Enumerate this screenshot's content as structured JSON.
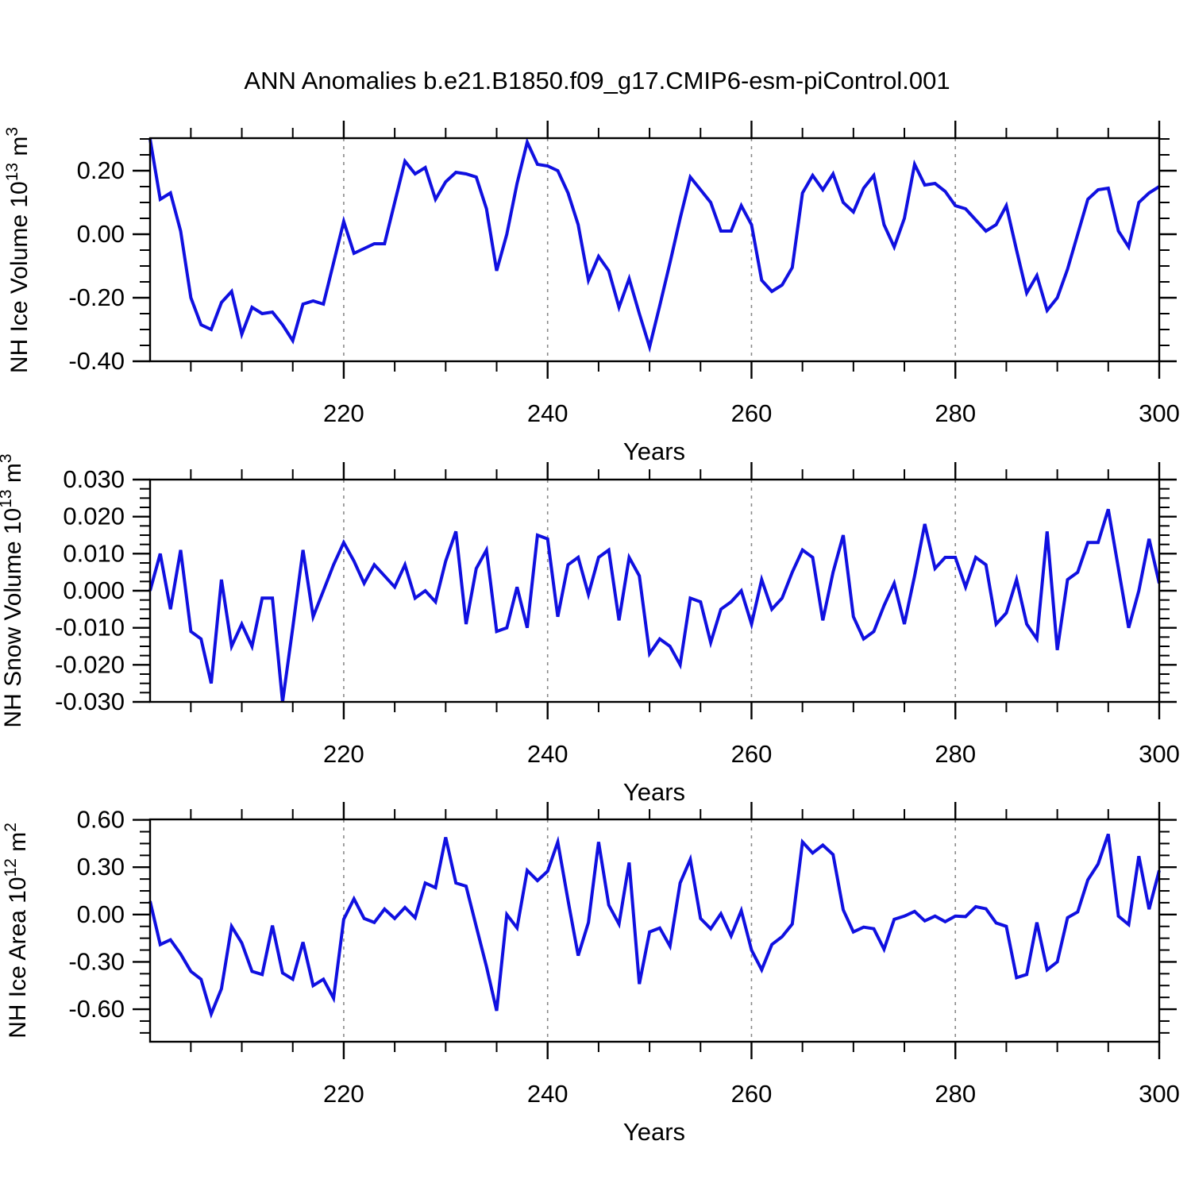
{
  "title": "ANN Anomalies b.e21.B1850.f09_g17.CMIP6-esm-piControl.001",
  "xlabel": "Years",
  "colors": {
    "line": "#1010E0",
    "axis": "#000000",
    "gridline": "#8a8a8a",
    "background": "#ffffff"
  },
  "x_axis": {
    "start": 201,
    "end": 300,
    "labeled_ticks": [
      220,
      240,
      260,
      280,
      300
    ],
    "tick_labels": [
      "220",
      "240",
      "260",
      "280",
      "300"
    ],
    "minor_step": 5,
    "gridline_years": [
      220,
      240,
      260,
      280
    ]
  },
  "chart_data": [
    {
      "type": "line",
      "ylabel": "NH Ice Volume 10^13 m^3",
      "ylabel_main": "NH Ice Volume 10",
      "ylabel_exp": "13",
      "ylabel_unit": " m",
      "ylabel_unit_exp": "3",
      "xlabel": "Years",
      "ylim": [
        -0.4,
        0.3025
      ],
      "yticks": [
        0.2,
        0.0,
        -0.2,
        -0.4
      ],
      "ytick_labels": [
        "0.20",
        "0.00",
        "-0.20",
        "-0.40"
      ],
      "y_minor_step": 0.05,
      "x": [
        201,
        202,
        203,
        204,
        205,
        206,
        207,
        208,
        209,
        210,
        211,
        212,
        213,
        214,
        215,
        216,
        217,
        218,
        219,
        220,
        221,
        222,
        223,
        224,
        225,
        226,
        227,
        228,
        229,
        230,
        231,
        232,
        233,
        234,
        235,
        236,
        237,
        238,
        239,
        240,
        241,
        242,
        243,
        244,
        245,
        246,
        247,
        248,
        249,
        250,
        251,
        252,
        253,
        254,
        255,
        256,
        257,
        258,
        259,
        260,
        261,
        262,
        263,
        264,
        265,
        266,
        267,
        268,
        269,
        270,
        271,
        272,
        273,
        274,
        275,
        276,
        277,
        278,
        279,
        280,
        281,
        282,
        283,
        284,
        285,
        286,
        287,
        288,
        289,
        290,
        291,
        292,
        293,
        294,
        295,
        296,
        297,
        298,
        299,
        300
      ],
      "values": [
        0.3,
        0.11,
        0.13,
        0.01,
        -0.2,
        -0.285,
        -0.3,
        -0.215,
        -0.18,
        -0.315,
        -0.23,
        -0.25,
        -0.245,
        -0.285,
        -0.335,
        -0.22,
        -0.21,
        -0.22,
        -0.09,
        0.04,
        -0.06,
        -0.045,
        -0.03,
        -0.03,
        0.1,
        0.23,
        0.19,
        0.21,
        0.11,
        0.165,
        0.195,
        0.19,
        0.18,
        0.08,
        -0.115,
        0.0,
        0.16,
        0.29,
        0.22,
        0.215,
        0.2,
        0.13,
        0.03,
        -0.145,
        -0.07,
        -0.115,
        -0.23,
        -0.14,
        -0.25,
        -0.355,
        -0.225,
        -0.09,
        0.05,
        0.18,
        0.14,
        0.1,
        0.01,
        0.01,
        0.09,
        0.03,
        -0.145,
        -0.18,
        -0.16,
        -0.105,
        0.13,
        0.185,
        0.14,
        0.19,
        0.1,
        0.07,
        0.145,
        0.185,
        0.03,
        -0.04,
        0.05,
        0.22,
        0.155,
        0.16,
        0.135,
        0.09,
        0.08,
        0.045,
        0.01,
        0.03,
        0.09,
        -0.05,
        -0.185,
        -0.13,
        -0.24,
        -0.2,
        -0.11,
        0.0,
        0.11,
        0.14,
        0.145,
        0.01,
        -0.04,
        0.1,
        0.13,
        0.15
      ]
    },
    {
      "type": "line",
      "ylabel": "NH Snow Volume 10^13 m^3",
      "ylabel_main": "NH Snow Volume 10",
      "ylabel_exp": "13",
      "ylabel_unit": " m",
      "ylabel_unit_exp": "3",
      "xlabel": "Years",
      "ylim": [
        -0.03,
        0.03
      ],
      "yticks": [
        0.03,
        0.02,
        0.01,
        0.0,
        -0.01,
        -0.02,
        -0.03
      ],
      "ytick_labels": [
        "0.030",
        "0.020",
        "0.010",
        "0.000",
        "-0.010",
        "-0.020",
        "-0.030"
      ],
      "y_minor_step": 0.0025,
      "x": [
        201,
        202,
        203,
        204,
        205,
        206,
        207,
        208,
        209,
        210,
        211,
        212,
        213,
        214,
        215,
        216,
        217,
        218,
        219,
        220,
        221,
        222,
        223,
        224,
        225,
        226,
        227,
        228,
        229,
        230,
        231,
        232,
        233,
        234,
        235,
        236,
        237,
        238,
        239,
        240,
        241,
        242,
        243,
        244,
        245,
        246,
        247,
        248,
        249,
        250,
        251,
        252,
        253,
        254,
        255,
        256,
        257,
        258,
        259,
        260,
        261,
        262,
        263,
        264,
        265,
        266,
        267,
        268,
        269,
        270,
        271,
        272,
        273,
        274,
        275,
        276,
        277,
        278,
        279,
        280,
        281,
        282,
        283,
        284,
        285,
        286,
        287,
        288,
        289,
        290,
        291,
        292,
        293,
        294,
        295,
        296,
        297,
        298,
        299,
        300
      ],
      "values": [
        0.0,
        0.01,
        -0.005,
        0.011,
        -0.011,
        -0.013,
        -0.025,
        0.003,
        -0.015,
        -0.009,
        -0.015,
        -0.002,
        -0.002,
        -0.03,
        -0.01,
        0.011,
        -0.007,
        0.0,
        0.007,
        0.013,
        0.008,
        0.002,
        0.007,
        0.004,
        0.001,
        0.007,
        -0.002,
        0.0,
        -0.003,
        0.008,
        0.016,
        -0.009,
        0.006,
        0.011,
        -0.011,
        -0.01,
        0.001,
        -0.01,
        0.015,
        0.014,
        -0.007,
        0.007,
        0.009,
        -0.001,
        0.009,
        0.011,
        -0.008,
        0.009,
        0.004,
        -0.017,
        -0.013,
        -0.015,
        -0.02,
        -0.002,
        -0.003,
        -0.014,
        -0.005,
        -0.003,
        0.0,
        -0.009,
        0.003,
        -0.005,
        -0.002,
        0.005,
        0.011,
        0.009,
        -0.008,
        0.005,
        0.015,
        -0.007,
        -0.013,
        -0.011,
        -0.004,
        0.002,
        -0.009,
        0.004,
        0.018,
        0.006,
        0.009,
        0.009,
        0.001,
        0.009,
        0.007,
        -0.009,
        -0.006,
        0.003,
        -0.009,
        -0.013,
        0.016,
        -0.016,
        0.003,
        0.005,
        0.013,
        0.013,
        0.022,
        0.006,
        -0.01,
        0.0,
        0.014,
        0.002
      ]
    },
    {
      "type": "line",
      "ylabel": "NH Ice Area 10^12 m^2",
      "ylabel_main": "NH Ice Area 10",
      "ylabel_exp": "12",
      "ylabel_unit": " m",
      "ylabel_unit_exp": "2",
      "xlabel": "Years",
      "ylim": [
        -0.806,
        0.603
      ],
      "yticks": [
        0.6,
        0.3,
        0.0,
        -0.3,
        -0.6
      ],
      "ytick_labels": [
        "0.60",
        "0.30",
        "0.00",
        "-0.30",
        "-0.60"
      ],
      "y_minor_step": 0.075,
      "x": [
        201,
        202,
        203,
        204,
        205,
        206,
        207,
        208,
        209,
        210,
        211,
        212,
        213,
        214,
        215,
        216,
        217,
        218,
        219,
        220,
        221,
        222,
        223,
        224,
        225,
        226,
        227,
        228,
        229,
        230,
        231,
        232,
        233,
        234,
        235,
        236,
        237,
        238,
        239,
        240,
        241,
        242,
        243,
        244,
        245,
        246,
        247,
        248,
        249,
        250,
        251,
        252,
        253,
        254,
        255,
        256,
        257,
        258,
        259,
        260,
        261,
        262,
        263,
        264,
        265,
        266,
        267,
        268,
        269,
        270,
        271,
        272,
        273,
        274,
        275,
        276,
        277,
        278,
        279,
        280,
        281,
        282,
        283,
        284,
        285,
        286,
        287,
        288,
        289,
        290,
        291,
        292,
        293,
        294,
        295,
        296,
        297,
        298,
        299,
        300
      ],
      "values": [
        0.085,
        -0.19,
        -0.16,
        -0.25,
        -0.36,
        -0.41,
        -0.63,
        -0.47,
        -0.075,
        -0.18,
        -0.36,
        -0.38,
        -0.07,
        -0.37,
        -0.41,
        -0.175,
        -0.45,
        -0.41,
        -0.53,
        -0.03,
        0.1,
        -0.025,
        -0.05,
        0.035,
        -0.025,
        0.045,
        -0.02,
        0.2,
        0.17,
        0.49,
        0.2,
        0.18,
        -0.075,
        -0.33,
        -0.61,
        0.0,
        -0.085,
        0.28,
        0.215,
        0.275,
        0.46,
        0.09,
        -0.26,
        -0.05,
        0.46,
        0.06,
        -0.06,
        0.33,
        -0.44,
        -0.11,
        -0.085,
        -0.2,
        0.2,
        0.35,
        -0.025,
        -0.09,
        0.005,
        -0.135,
        0.025,
        -0.225,
        -0.35,
        -0.19,
        -0.14,
        -0.06,
        0.46,
        0.39,
        0.44,
        0.38,
        0.03,
        -0.11,
        -0.08,
        -0.09,
        -0.22,
        -0.03,
        -0.01,
        0.02,
        -0.04,
        -0.01,
        -0.045,
        -0.01,
        -0.013,
        0.05,
        0.037,
        -0.053,
        -0.075,
        -0.4,
        -0.38,
        -0.05,
        -0.35,
        -0.3,
        -0.02,
        0.017,
        0.22,
        0.32,
        0.51,
        -0.01,
        -0.064,
        0.37,
        0.034,
        0.28
      ]
    }
  ]
}
